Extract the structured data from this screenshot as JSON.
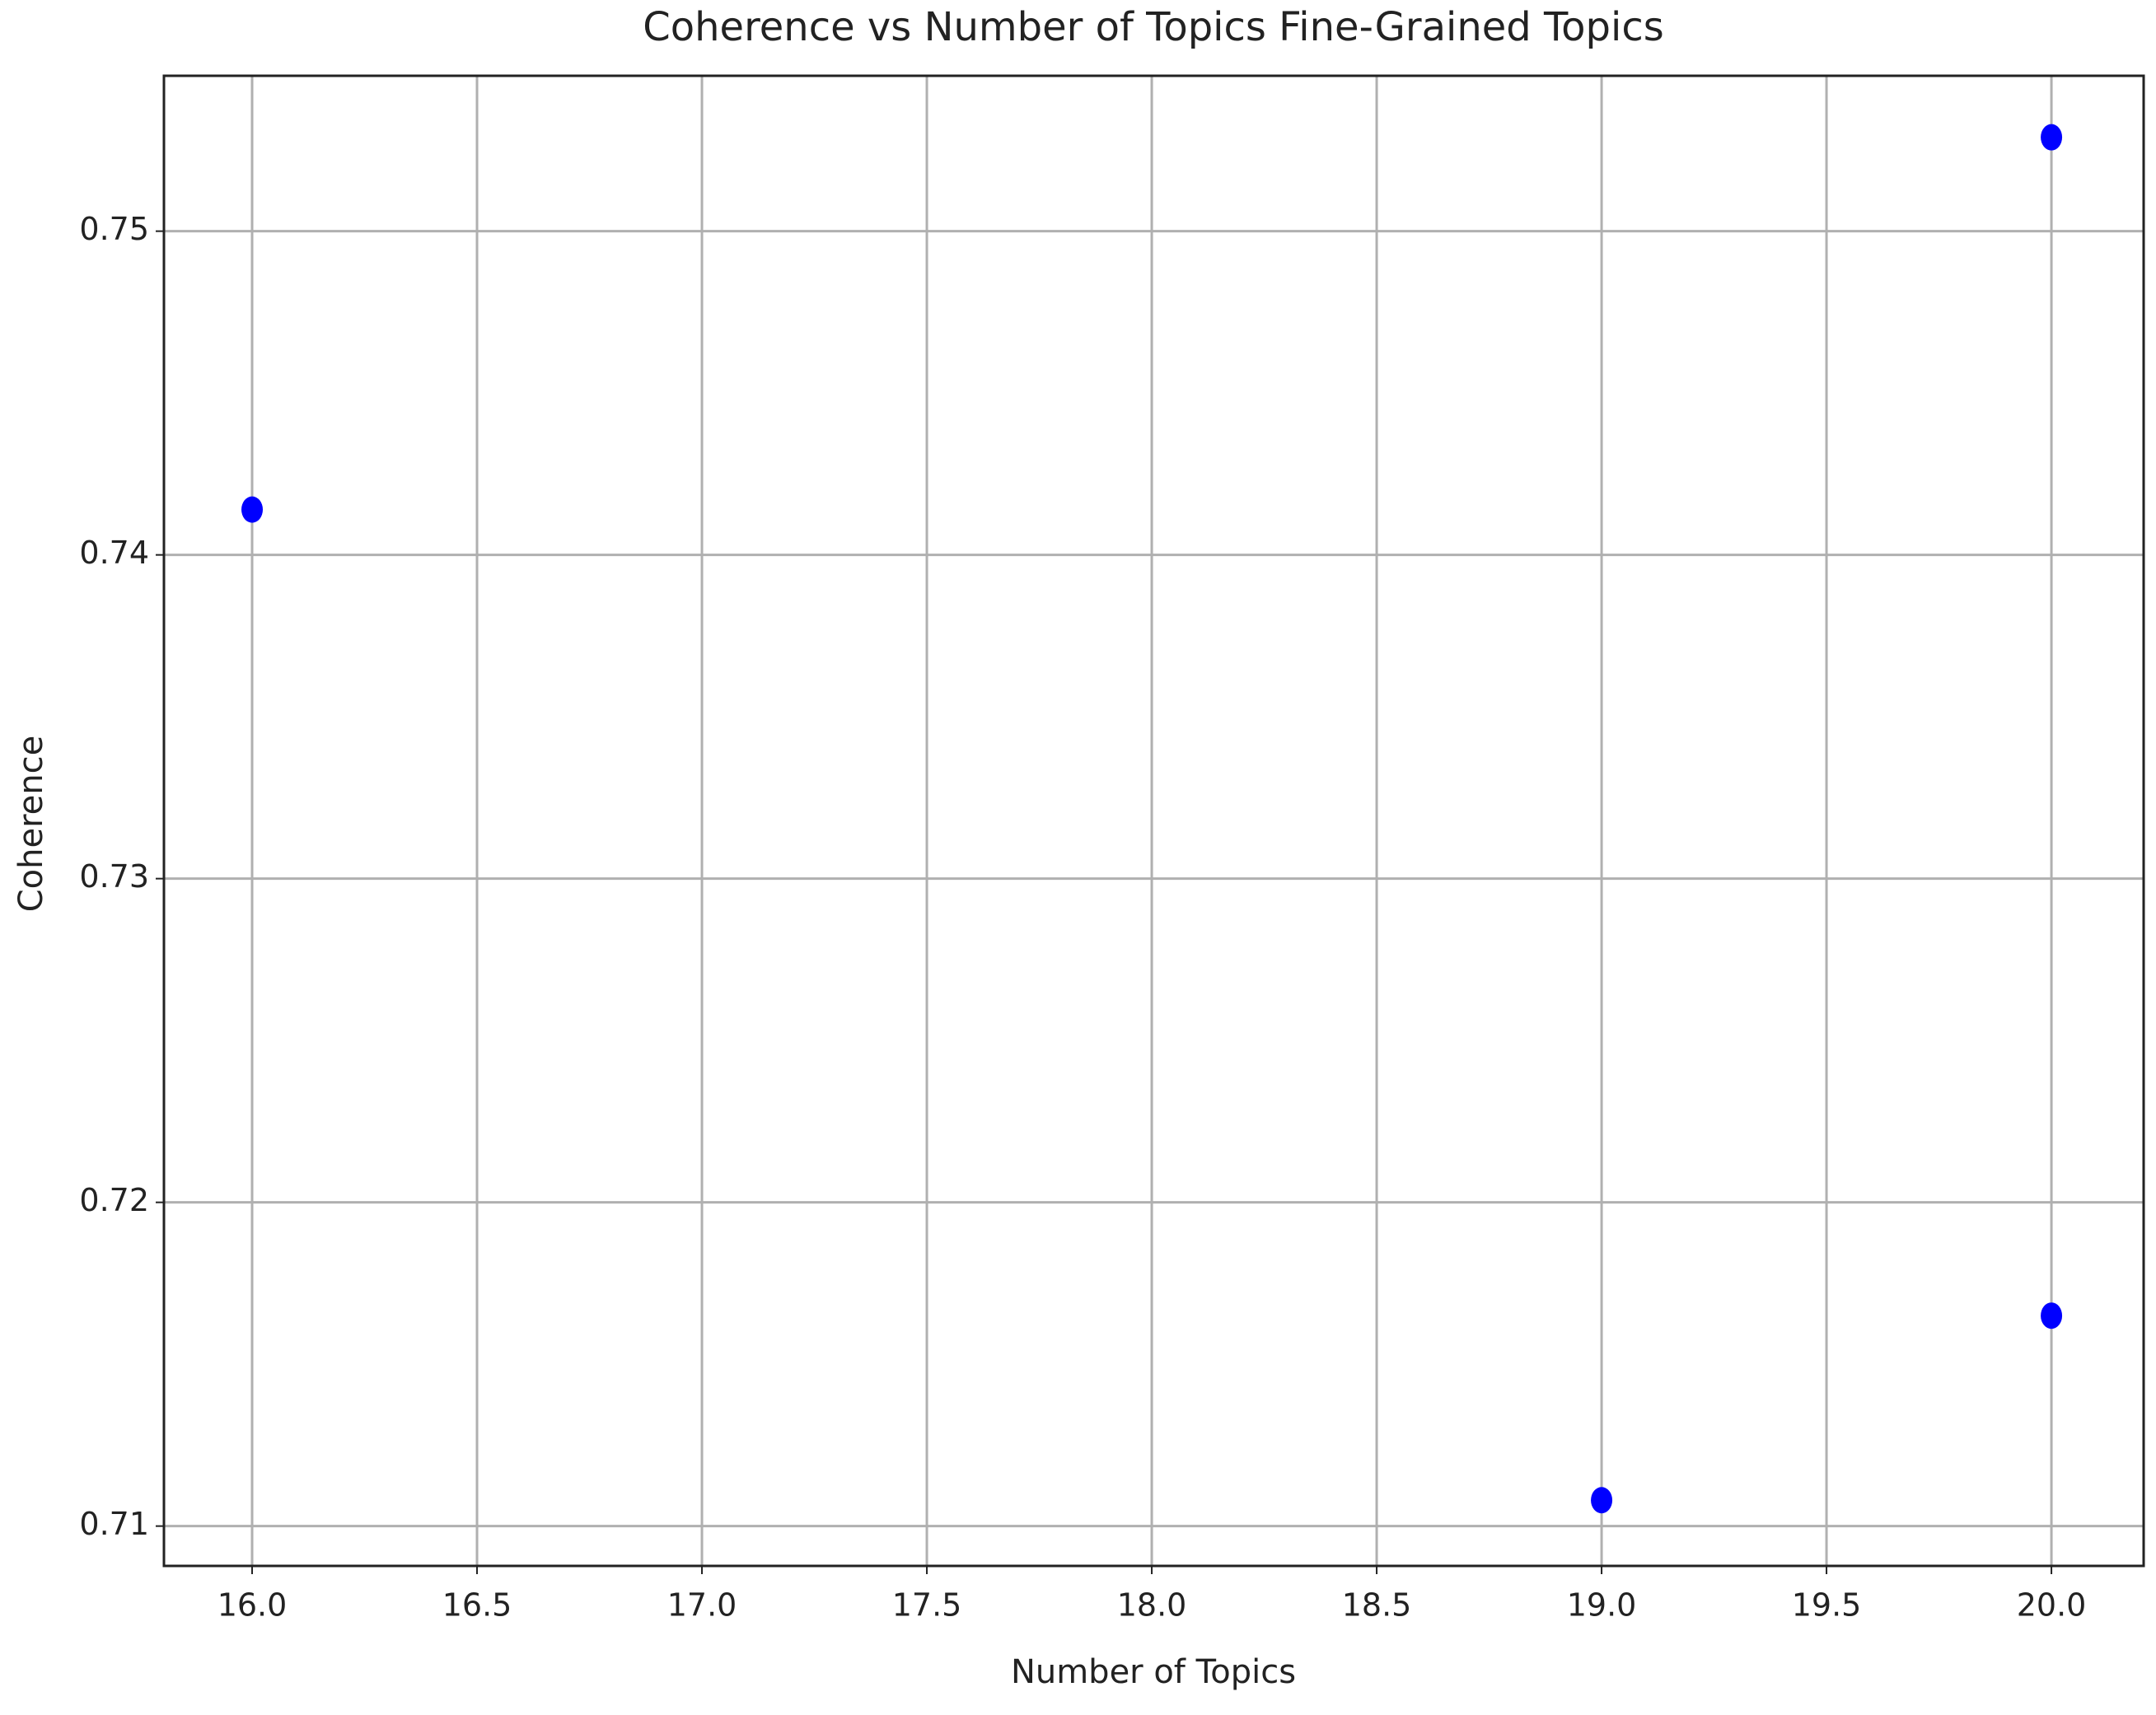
{
  "chart_data": {
    "type": "scatter",
    "title": "Coherence vs Number of Topics Fine-Grained Topics",
    "x_label": "Number of Topics",
    "y_label": "Coherence",
    "x": [
      16,
      19,
      20,
      20
    ],
    "values": [
      0.7414,
      0.7108,
      0.7529,
      0.7165
    ],
    "color": "#0000ff",
    "xlim": [
      15.804,
      20.205
    ],
    "ylim": [
      0.70877,
      0.7548
    ],
    "xticks": [
      {
        "value": 16,
        "label": "16.0"
      },
      {
        "value": 16.5,
        "label": "16.5"
      },
      {
        "value": 17,
        "label": "17.0"
      },
      {
        "value": 17.5,
        "label": "17.5"
      },
      {
        "value": 18,
        "label": "18.0"
      },
      {
        "value": 18.5,
        "label": "18.5"
      },
      {
        "value": 19,
        "label": "19.0"
      },
      {
        "value": 19.5,
        "label": "19.5"
      },
      {
        "value": 20,
        "label": "20.0"
      }
    ],
    "yticks": [
      0.71,
      0.72,
      0.73,
      0.74,
      0.75
    ],
    "grid": true
  }
}
